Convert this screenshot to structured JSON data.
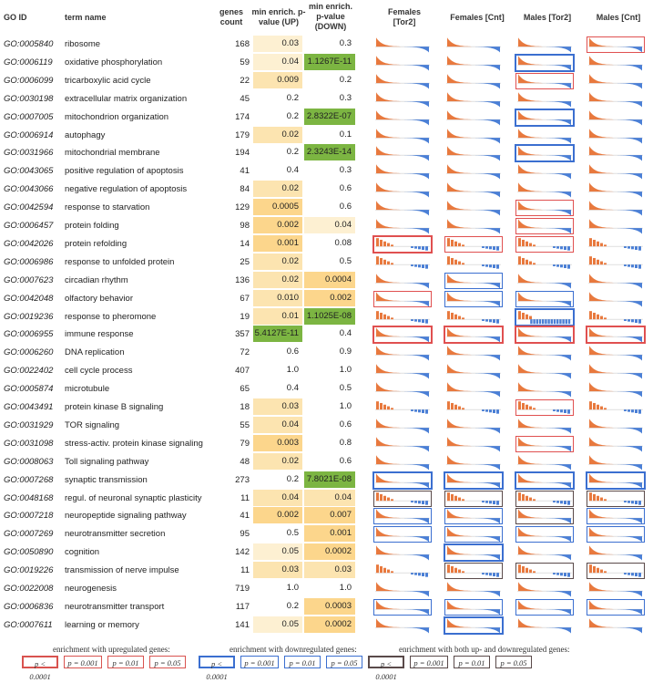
{
  "headers": {
    "go_id": "GO ID",
    "term_name": "term name",
    "genes_count": "genes count",
    "min_up": "min enrich. p-value (UP)",
    "min_down": "min enrich. p-value (DOWN)",
    "panels": [
      "Females [Tor2]",
      "Females [Cnt]",
      "Males [Tor2]",
      "Males [Cnt]"
    ]
  },
  "rows": [
    {
      "id": "GO:0005840",
      "term": "ribosome",
      "count": "168",
      "up": "0.03",
      "down": "0.3",
      "up_fill": "#fdf0d2",
      "down_fill": "",
      "boxes": [
        "",
        "",
        "",
        "r3"
      ],
      "bars": [
        "dec",
        "dec",
        "dec",
        "dec"
      ]
    },
    {
      "id": "GO:0006119",
      "term": "oxidative phosphorylation",
      "count": "59",
      "up": "0.04",
      "down": "1.1267E-11",
      "up_fill": "#fdf0d2",
      "down_fill": "#7cb542",
      "boxes": [
        "",
        "",
        "b1",
        ""
      ],
      "bars": [
        "dec",
        "dec",
        "dec",
        "dec"
      ]
    },
    {
      "id": "GO:0006099",
      "term": "tricarboxylic acid cycle",
      "count": "22",
      "up": "0.009",
      "down": "0.2",
      "up_fill": "#fce4b0",
      "down_fill": "",
      "boxes": [
        "",
        "",
        "r3",
        ""
      ],
      "bars": [
        "dec",
        "dec",
        "dec",
        "dec"
      ]
    },
    {
      "id": "GO:0030198",
      "term": "extracellular matrix organization",
      "count": "45",
      "up": "0.2",
      "down": "0.3",
      "up_fill": "",
      "down_fill": "",
      "boxes": [
        "",
        "",
        "",
        ""
      ],
      "bars": [
        "dec",
        "dec",
        "dec",
        "dec"
      ]
    },
    {
      "id": "GO:0007005",
      "term": "mitochondrion organization",
      "count": "174",
      "up": "0.2",
      "down": "2.8322E-07",
      "up_fill": "",
      "down_fill": "#7cb542",
      "boxes": [
        "",
        "",
        "b1",
        ""
      ],
      "bars": [
        "dec",
        "dec",
        "dec",
        "dec"
      ]
    },
    {
      "id": "GO:0006914",
      "term": "autophagy",
      "count": "179",
      "up": "0.02",
      "down": "0.1",
      "up_fill": "#fce4b0",
      "down_fill": "",
      "boxes": [
        "",
        "",
        "",
        ""
      ],
      "bars": [
        "dec",
        "dec",
        "dec",
        "dec"
      ]
    },
    {
      "id": "GO:0031966",
      "term": "mitochondrial membrane",
      "count": "194",
      "up": "0.2",
      "down": "2.3243E-14",
      "up_fill": "",
      "down_fill": "#7cb542",
      "boxes": [
        "",
        "",
        "b1",
        ""
      ],
      "bars": [
        "dec",
        "dec",
        "dec",
        "dec"
      ]
    },
    {
      "id": "GO:0043065",
      "term": "positive regulation of apoptosis",
      "count": "41",
      "up": "0.4",
      "down": "0.3",
      "up_fill": "",
      "down_fill": "",
      "boxes": [
        "",
        "",
        "",
        ""
      ],
      "bars": [
        "dec",
        "dec",
        "dec",
        "dec"
      ]
    },
    {
      "id": "GO:0043066",
      "term": "negative regulation of apoptosis",
      "count": "84",
      "up": "0.02",
      "down": "0.6",
      "up_fill": "#fce4b0",
      "down_fill": "",
      "boxes": [
        "",
        "",
        "",
        ""
      ],
      "bars": [
        "dec",
        "dec",
        "dec",
        "dec"
      ]
    },
    {
      "id": "GO:0042594",
      "term": "response to starvation",
      "count": "129",
      "up": "0.0005",
      "down": "0.6",
      "up_fill": "#fcd68c",
      "down_fill": "",
      "boxes": [
        "",
        "",
        "r2",
        ""
      ],
      "bars": [
        "dec",
        "dec",
        "dec",
        "dec"
      ]
    },
    {
      "id": "GO:0006457",
      "term": "protein folding",
      "count": "98",
      "up": "0.002",
      "down": "0.04",
      "up_fill": "#fcd68c",
      "down_fill": "#fdf0d2",
      "boxes": [
        "",
        "",
        "r2",
        ""
      ],
      "bars": [
        "dec",
        "dec",
        "dec",
        "dec"
      ]
    },
    {
      "id": "GO:0042026",
      "term": "protein refolding",
      "count": "14",
      "up": "0.001",
      "down": "0.08",
      "up_fill": "#fcd68c",
      "down_fill": "",
      "boxes": [
        "r1",
        "r2",
        "r3",
        ""
      ],
      "bars": [
        "few",
        "few",
        "few",
        "few"
      ]
    },
    {
      "id": "GO:0006986",
      "term": "response to unfolded protein",
      "count": "25",
      "up": "0.02",
      "down": "0.5",
      "up_fill": "#fce4b0",
      "down_fill": "",
      "boxes": [
        "",
        "",
        "",
        ""
      ],
      "bars": [
        "few",
        "few",
        "few",
        "few"
      ]
    },
    {
      "id": "GO:0007623",
      "term": "circadian rhythm",
      "count": "136",
      "up": "0.02",
      "down": "0.0004",
      "up_fill": "#fce4b0",
      "down_fill": "#fcd68c",
      "boxes": [
        "",
        "b3",
        "",
        ""
      ],
      "bars": [
        "dec",
        "dec",
        "dec",
        "dec"
      ]
    },
    {
      "id": "GO:0042048",
      "term": "olfactory behavior",
      "count": "67",
      "up": "0.010",
      "down": "0.002",
      "up_fill": "#fce4b0",
      "down_fill": "#fcd68c",
      "boxes": [
        "r3",
        "b2",
        "b3",
        ""
      ],
      "bars": [
        "dec",
        "dec",
        "dec",
        "dec"
      ]
    },
    {
      "id": "GO:0019236",
      "term": "response to pheromone",
      "count": "19",
      "up": "0.01",
      "down": "1.1025E-08",
      "up_fill": "#fce4b0",
      "down_fill": "#7cb542",
      "boxes": [
        "",
        "",
        "b1",
        ""
      ],
      "bars": [
        "few",
        "few",
        "blu",
        "few"
      ]
    },
    {
      "id": "GO:0006955",
      "term": "immune response",
      "count": "357",
      "up": "5.4127E-11",
      "down": "0.4",
      "up_fill": "#7cb542",
      "down_fill": "",
      "boxes": [
        "r1",
        "r1",
        "r1",
        "r1"
      ],
      "bars": [
        "dec",
        "dec",
        "dec",
        "dec"
      ]
    },
    {
      "id": "GO:0006260",
      "term": "DNA replication",
      "count": "72",
      "up": "0.6",
      "down": "0.9",
      "up_fill": "",
      "down_fill": "",
      "boxes": [
        "",
        "",
        "",
        ""
      ],
      "bars": [
        "dec",
        "dec",
        "dec",
        "dec"
      ]
    },
    {
      "id": "GO:0022402",
      "term": "cell cycle process",
      "count": "407",
      "up": "1.0",
      "down": "1.0",
      "up_fill": "",
      "down_fill": "",
      "boxes": [
        "",
        "",
        "",
        ""
      ],
      "bars": [
        "dec",
        "dec",
        "dec",
        "dec"
      ]
    },
    {
      "id": "GO:0005874",
      "term": "microtubule",
      "count": "65",
      "up": "0.4",
      "down": "0.5",
      "up_fill": "",
      "down_fill": "",
      "boxes": [
        "",
        "",
        "",
        ""
      ],
      "bars": [
        "dec",
        "dec",
        "dec",
        "dec"
      ]
    },
    {
      "id": "GO:0043491",
      "term": "protein kinase B signaling",
      "count": "18",
      "up": "0.03",
      "down": "1.0",
      "up_fill": "#fce4b0",
      "down_fill": "",
      "boxes": [
        "",
        "",
        "r3",
        ""
      ],
      "bars": [
        "few",
        "few",
        "few",
        "few"
      ]
    },
    {
      "id": "GO:0031929",
      "term": "TOR signaling",
      "count": "55",
      "up": "0.04",
      "down": "0.6",
      "up_fill": "#fce4b0",
      "down_fill": "",
      "boxes": [
        "",
        "",
        "",
        ""
      ],
      "bars": [
        "dec",
        "dec",
        "dec",
        "dec"
      ]
    },
    {
      "id": "GO:0031098",
      "term": "stress-activ. protein kinase signaling",
      "count": "79",
      "up": "0.003",
      "down": "0.8",
      "up_fill": "#fcd68c",
      "down_fill": "",
      "boxes": [
        "",
        "",
        "r2",
        ""
      ],
      "bars": [
        "dec",
        "dec",
        "dec",
        "dec"
      ]
    },
    {
      "id": "GO:0008063",
      "term": "Toll signaling pathway",
      "count": "48",
      "up": "0.02",
      "down": "0.6",
      "up_fill": "#fce4b0",
      "down_fill": "",
      "boxes": [
        "",
        "",
        "",
        ""
      ],
      "bars": [
        "dec",
        "dec",
        "dec",
        "dec"
      ]
    },
    {
      "id": "GO:0007268",
      "term": "synaptic transmission",
      "count": "273",
      "up": "0.2",
      "down": "7.8021E-08",
      "up_fill": "",
      "down_fill": "#7cb542",
      "boxes": [
        "b1",
        "b1",
        "b1",
        "b1"
      ],
      "bars": [
        "dec",
        "dec",
        "dec",
        "dec"
      ]
    },
    {
      "id": "GO:0048168",
      "term": "regul. of neuronal synaptic plasticity",
      "count": "11",
      "up": "0.04",
      "down": "0.04",
      "up_fill": "#fce4b0",
      "down_fill": "#fce4b0",
      "boxes": [
        "k3",
        "k3",
        "k3",
        "k3"
      ],
      "bars": [
        "few",
        "few",
        "few",
        "few"
      ]
    },
    {
      "id": "GO:0007218",
      "term": "neuropeptide signaling pathway",
      "count": "41",
      "up": "0.002",
      "down": "0.007",
      "up_fill": "#fcd68c",
      "down_fill": "#fcd68c",
      "boxes": [
        "b2",
        "b2",
        "k2",
        "b2"
      ],
      "bars": [
        "dec",
        "dec",
        "dec",
        "dec"
      ]
    },
    {
      "id": "GO:0007269",
      "term": "neurotransmitter secretion",
      "count": "95",
      "up": "0.5",
      "down": "0.001",
      "up_fill": "",
      "down_fill": "#fcd68c",
      "boxes": [
        "b3",
        "b3",
        "b3",
        "b3"
      ],
      "bars": [
        "dec",
        "dec",
        "dec",
        "dec"
      ]
    },
    {
      "id": "GO:0050890",
      "term": "cognition",
      "count": "142",
      "up": "0.05",
      "down": "0.0002",
      "up_fill": "#fdf0d2",
      "down_fill": "#fcd68c",
      "boxes": [
        "",
        "b1",
        "",
        ""
      ],
      "bars": [
        "dec",
        "dec",
        "dec",
        "dec"
      ]
    },
    {
      "id": "GO:0019226",
      "term": "transmission of nerve impulse",
      "count": "11",
      "up": "0.03",
      "down": "0.03",
      "up_fill": "#fce4b0",
      "down_fill": "#fce4b0",
      "boxes": [
        "",
        "k3",
        "k3",
        "k3"
      ],
      "bars": [
        "few",
        "few",
        "few",
        "few"
      ]
    },
    {
      "id": "GO:0022008",
      "term": "neurogenesis",
      "count": "719",
      "up": "1.0",
      "down": "1.0",
      "up_fill": "",
      "down_fill": "",
      "boxes": [
        "",
        "",
        "",
        ""
      ],
      "bars": [
        "dec",
        "dec",
        "dec",
        "dec"
      ]
    },
    {
      "id": "GO:0006836",
      "term": "neurotransmitter transport",
      "count": "117",
      "up": "0.2",
      "down": "0.0003",
      "up_fill": "",
      "down_fill": "#fcd68c",
      "boxes": [
        "b3",
        "b3",
        "b3",
        "b3"
      ],
      "bars": [
        "dec",
        "dec",
        "dec",
        "dec"
      ]
    },
    {
      "id": "GO:0007611",
      "term": "learning or memory",
      "count": "141",
      "up": "0.05",
      "down": "0.0002",
      "up_fill": "#fdf0d2",
      "down_fill": "#fcd68c",
      "boxes": [
        "",
        "b1",
        "",
        ""
      ],
      "bars": [
        "dec",
        "dec",
        "dec",
        "dec"
      ]
    }
  ],
  "legend": {
    "groups": [
      {
        "title": "enrichment with upregulated genes:",
        "items": [
          "p < 0.0001",
          "p = 0.001",
          "p = 0.01",
          "p = 0.05"
        ],
        "color": "#d9534f"
      },
      {
        "title": "enrichment with downregulated genes:",
        "items": [
          "p < 0.0001",
          "p = 0.001",
          "p = 0.01",
          "p = 0.05"
        ],
        "color": "#3b6fd0"
      },
      {
        "title": "enrichment with both up- and downregulated genes:",
        "items": [
          "p < 0.0001",
          "p = 0.001",
          "p = 0.01",
          "p = 0.05"
        ],
        "color": "#5a4a4a"
      }
    ]
  },
  "colors": {
    "orange": "#e8793e",
    "blue": "#4a7fd6",
    "red_box": "#e05050",
    "blue_box": "#3b6fd0",
    "dark_box": "#5a4a4a",
    "green": "#7cb542"
  }
}
